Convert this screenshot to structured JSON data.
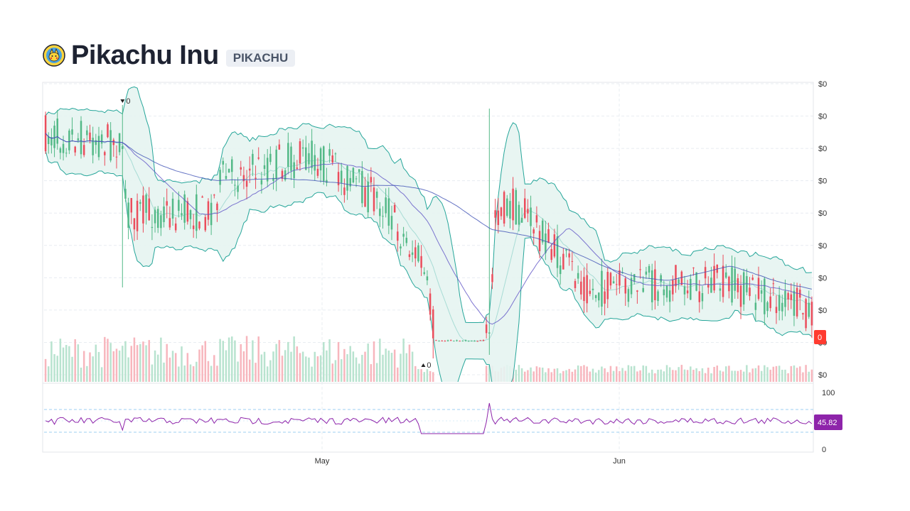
{
  "header": {
    "title": "Pikachu Inu",
    "ticker": "PIKACHU",
    "logo_icon": "pikachu-coin-icon"
  },
  "chart_data": [
    {
      "type": "candlestick",
      "title": "",
      "price_axis_labels": [
        "$0",
        "$0",
        "$0",
        "$0",
        "$0",
        "$0",
        "$0",
        "$0",
        "$0",
        "$0"
      ],
      "x_tick_labels": [
        "May",
        "Jun"
      ],
      "last_price_badge": "0",
      "markers": [
        {
          "label": "0",
          "kind": "high",
          "direction": "down",
          "at_fraction": 0.102
        },
        {
          "label": "0",
          "kind": "low",
          "direction": "up",
          "at_fraction": 0.493
        }
      ],
      "indicators": [
        "Bollinger Bands",
        "Moving Average",
        "Moving Average (long)",
        "Volume"
      ],
      "colors": {
        "up": "#53b987",
        "down": "#eb4d5c",
        "band_line": "#26a69a",
        "band_fill": "#e6f4f1",
        "ma_short": "#5e53c6",
        "ma_long": "#3f51b5",
        "volume_up": "#b8e3cf",
        "volume_down": "#f7b6bd",
        "badge": "#ff3b30"
      },
      "candle_count": 260
    },
    {
      "type": "line",
      "title": "",
      "indicator": "RSI",
      "ylim": [
        0,
        100
      ],
      "y_tick_labels": [
        "100",
        "0"
      ],
      "current_value": "45.82",
      "colors": {
        "line": "#8e24aa",
        "badge": "#8e24aa",
        "bands": "#9ecff0"
      }
    }
  ]
}
